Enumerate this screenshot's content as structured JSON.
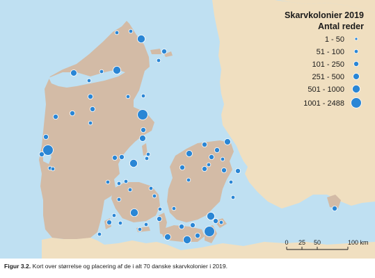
{
  "legend": {
    "title": "Skarvkolonier 2019",
    "subtitle": "Antal reder",
    "classes": [
      "1 - 50",
      "51 - 100",
      "101 - 250",
      "251 - 500",
      "501 - 1000",
      "1001 - 2488"
    ]
  },
  "scale_bar": {
    "ticks": [
      "0",
      "25",
      "50",
      "100 km"
    ]
  },
  "caption": {
    "label": "Figur 3.2.",
    "text": "Kort over størrelse og placering af de i alt 70 danske skarvkolonier i 2019."
  },
  "colors": {
    "sea": "#bfe0f2",
    "denmark": "#d3bba6",
    "neighbour": "#f0dfc0",
    "colony": "#2a86d5"
  }
}
